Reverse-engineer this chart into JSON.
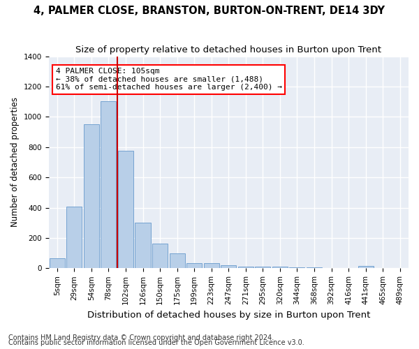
{
  "title": "4, PALMER CLOSE, BRANSTON, BURTON-ON-TRENT, DE14 3DY",
  "subtitle": "Size of property relative to detached houses in Burton upon Trent",
  "xlabel": "Distribution of detached houses by size in Burton upon Trent",
  "ylabel": "Number of detached properties",
  "footnote1": "Contains HM Land Registry data © Crown copyright and database right 2024.",
  "footnote2": "Contains public sector information licensed under the Open Government Licence v3.0.",
  "bar_labels": [
    "5sqm",
    "29sqm",
    "54sqm",
    "78sqm",
    "102sqm",
    "126sqm",
    "150sqm",
    "175sqm",
    "199sqm",
    "223sqm",
    "247sqm",
    "271sqm",
    "295sqm",
    "320sqm",
    "344sqm",
    "368sqm",
    "392sqm",
    "416sqm",
    "441sqm",
    "465sqm",
    "489sqm"
  ],
  "bar_values": [
    65,
    405,
    950,
    1105,
    775,
    300,
    165,
    100,
    35,
    35,
    18,
    12,
    12,
    10,
    5,
    5,
    0,
    0,
    15,
    0,
    0
  ],
  "bar_color": "#b8cfe8",
  "bar_edgecolor": "#6699cc",
  "bg_color": "#e8edf5",
  "grid_color": "#ffffff",
  "annotation_text": "4 PALMER CLOSE: 105sqm\n← 38% of detached houses are smaller (1,488)\n61% of semi-detached houses are larger (2,400) →",
  "vline_index": 3.5,
  "vline_color": "#cc0000",
  "ylim": [
    0,
    1400
  ],
  "yticks": [
    0,
    200,
    400,
    600,
    800,
    1000,
    1200,
    1400
  ],
  "title_fontsize": 10.5,
  "subtitle_fontsize": 9.5,
  "xlabel_fontsize": 9.5,
  "ylabel_fontsize": 8.5,
  "tick_fontsize": 7.5,
  "annot_fontsize": 8,
  "footnote_fontsize": 7
}
